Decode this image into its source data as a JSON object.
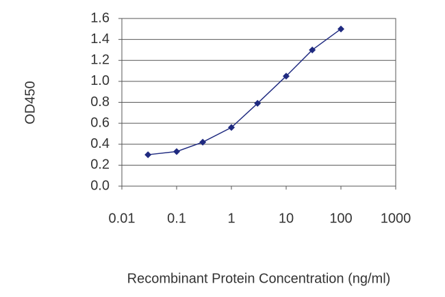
{
  "chart_data": {
    "type": "line",
    "xlabel": "Recombinant Protein Concentration (ng/ml)",
    "ylabel": "OD450",
    "x": [
      0.03,
      0.1,
      0.3,
      1,
      3,
      10,
      30,
      100
    ],
    "values": [
      0.3,
      0.33,
      0.42,
      0.56,
      0.79,
      1.05,
      1.3,
      1.5
    ],
    "color": "#1f2a80",
    "xscale": "log",
    "xlim": [
      0.01,
      1000
    ],
    "xticks": [
      0.01,
      0.1,
      1,
      10,
      100,
      1000
    ],
    "ylim": [
      0,
      1.6
    ],
    "yticks": [
      {
        "value": 0,
        "label": "0.0"
      },
      0.2,
      0.4,
      0.6,
      0.8,
      {
        "value": 1,
        "label": "1.0"
      },
      1.2,
      1.4,
      1.6
    ],
    "grid": true
  }
}
